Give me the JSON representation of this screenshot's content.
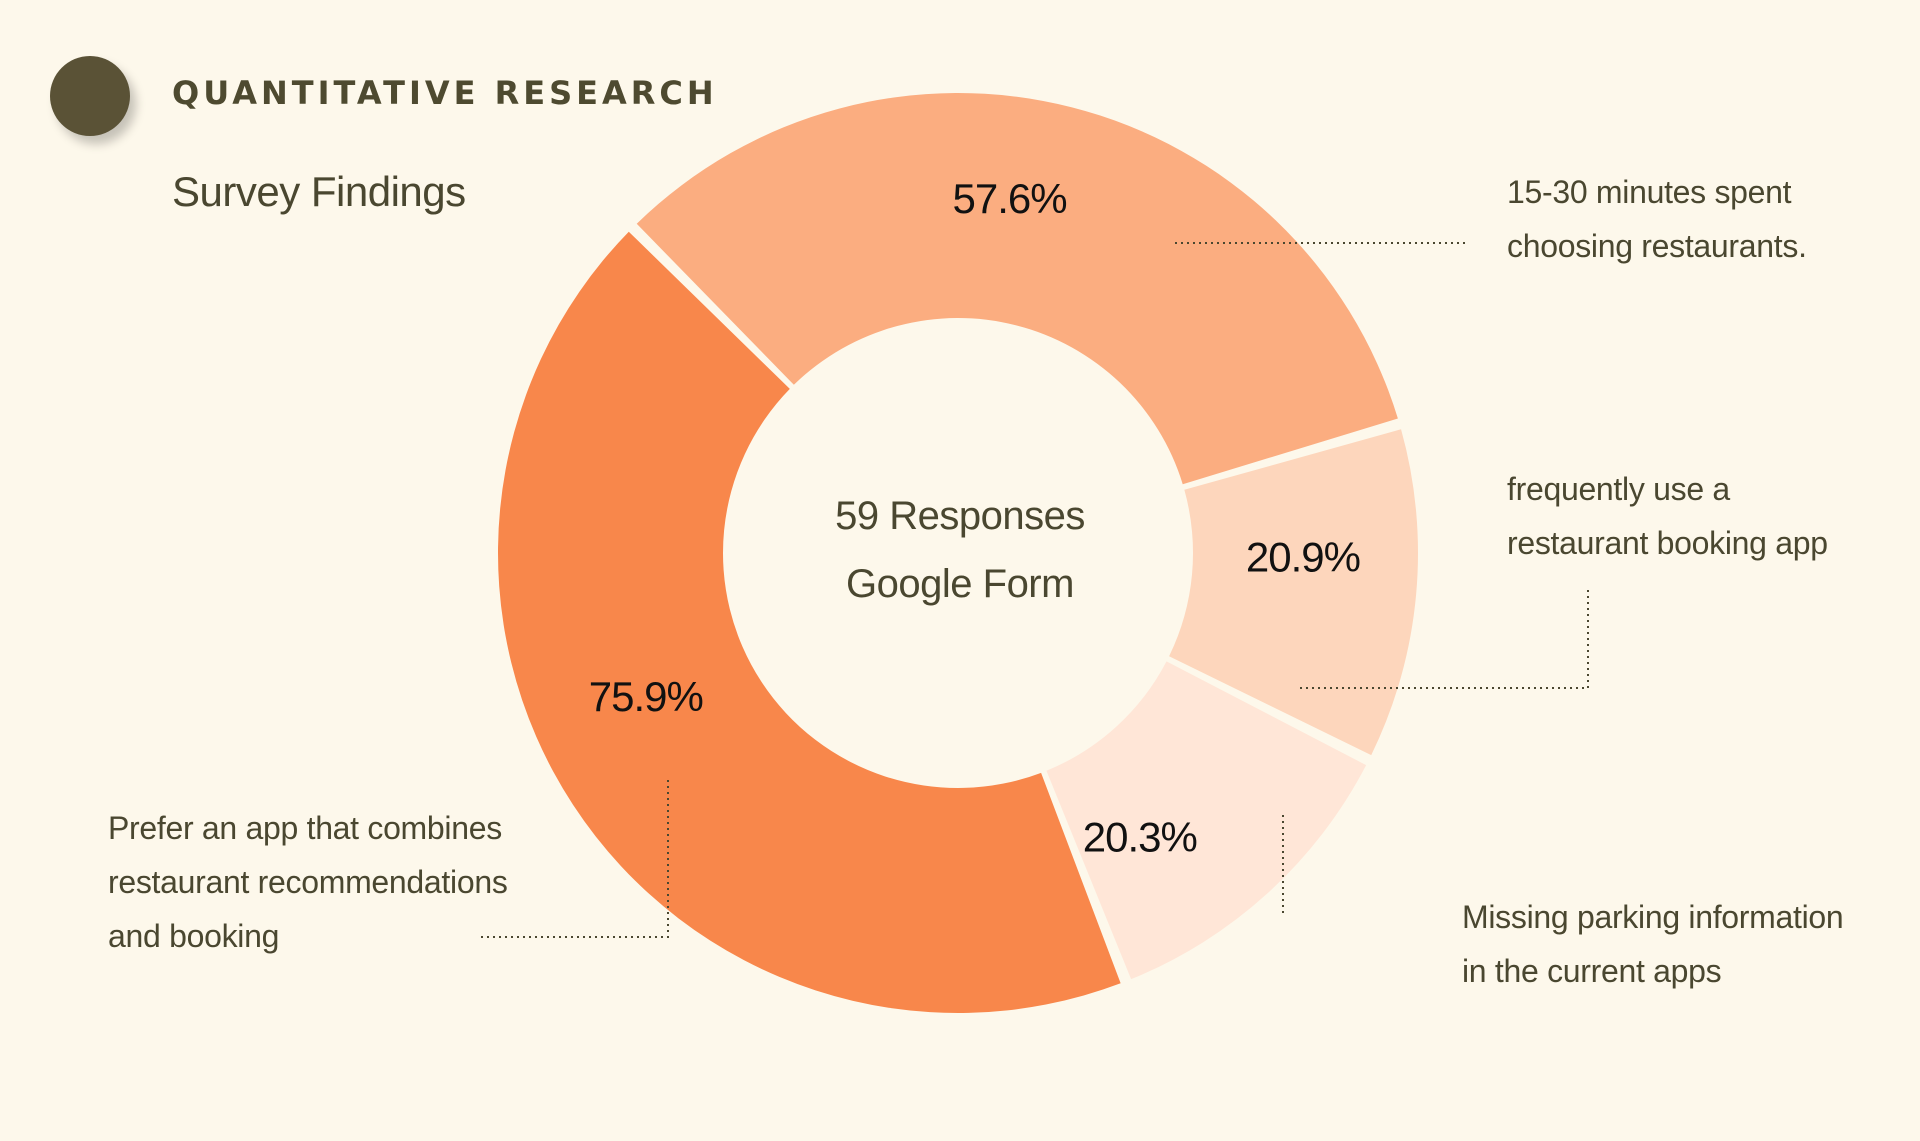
{
  "header": {
    "section_title": "QUANTITATIVE RESEARCH",
    "subtitle": "Survey Findings"
  },
  "center": {
    "line1": "59 Responses",
    "line2": "Google Form"
  },
  "chart_data": {
    "type": "pie",
    "title": "",
    "slices": [
      {
        "value": 57.6,
        "label": "57.6%",
        "annotation": [
          "15-30 minutes spent",
          "choosing restaurants."
        ],
        "color": "#fbad80"
      },
      {
        "value": 20.9,
        "label": "20.9%",
        "annotation": [
          "frequently use a",
          "restaurant booking app"
        ],
        "color": "#fdd6bc"
      },
      {
        "value": 20.3,
        "label": "20.3%",
        "annotation": [
          "Missing parking information",
          "in the current apps"
        ],
        "color": "#ffe6d7"
      },
      {
        "value": 75.9,
        "label": "75.9%",
        "annotation": [
          "Prefer an app that combines",
          "restaurant recommendations",
          "and booking"
        ],
        "color": "#f8874b"
      }
    ]
  },
  "colors": {
    "background": "#fdf8eb",
    "accent_dot": "#5a5236",
    "text": "#4a4730"
  }
}
